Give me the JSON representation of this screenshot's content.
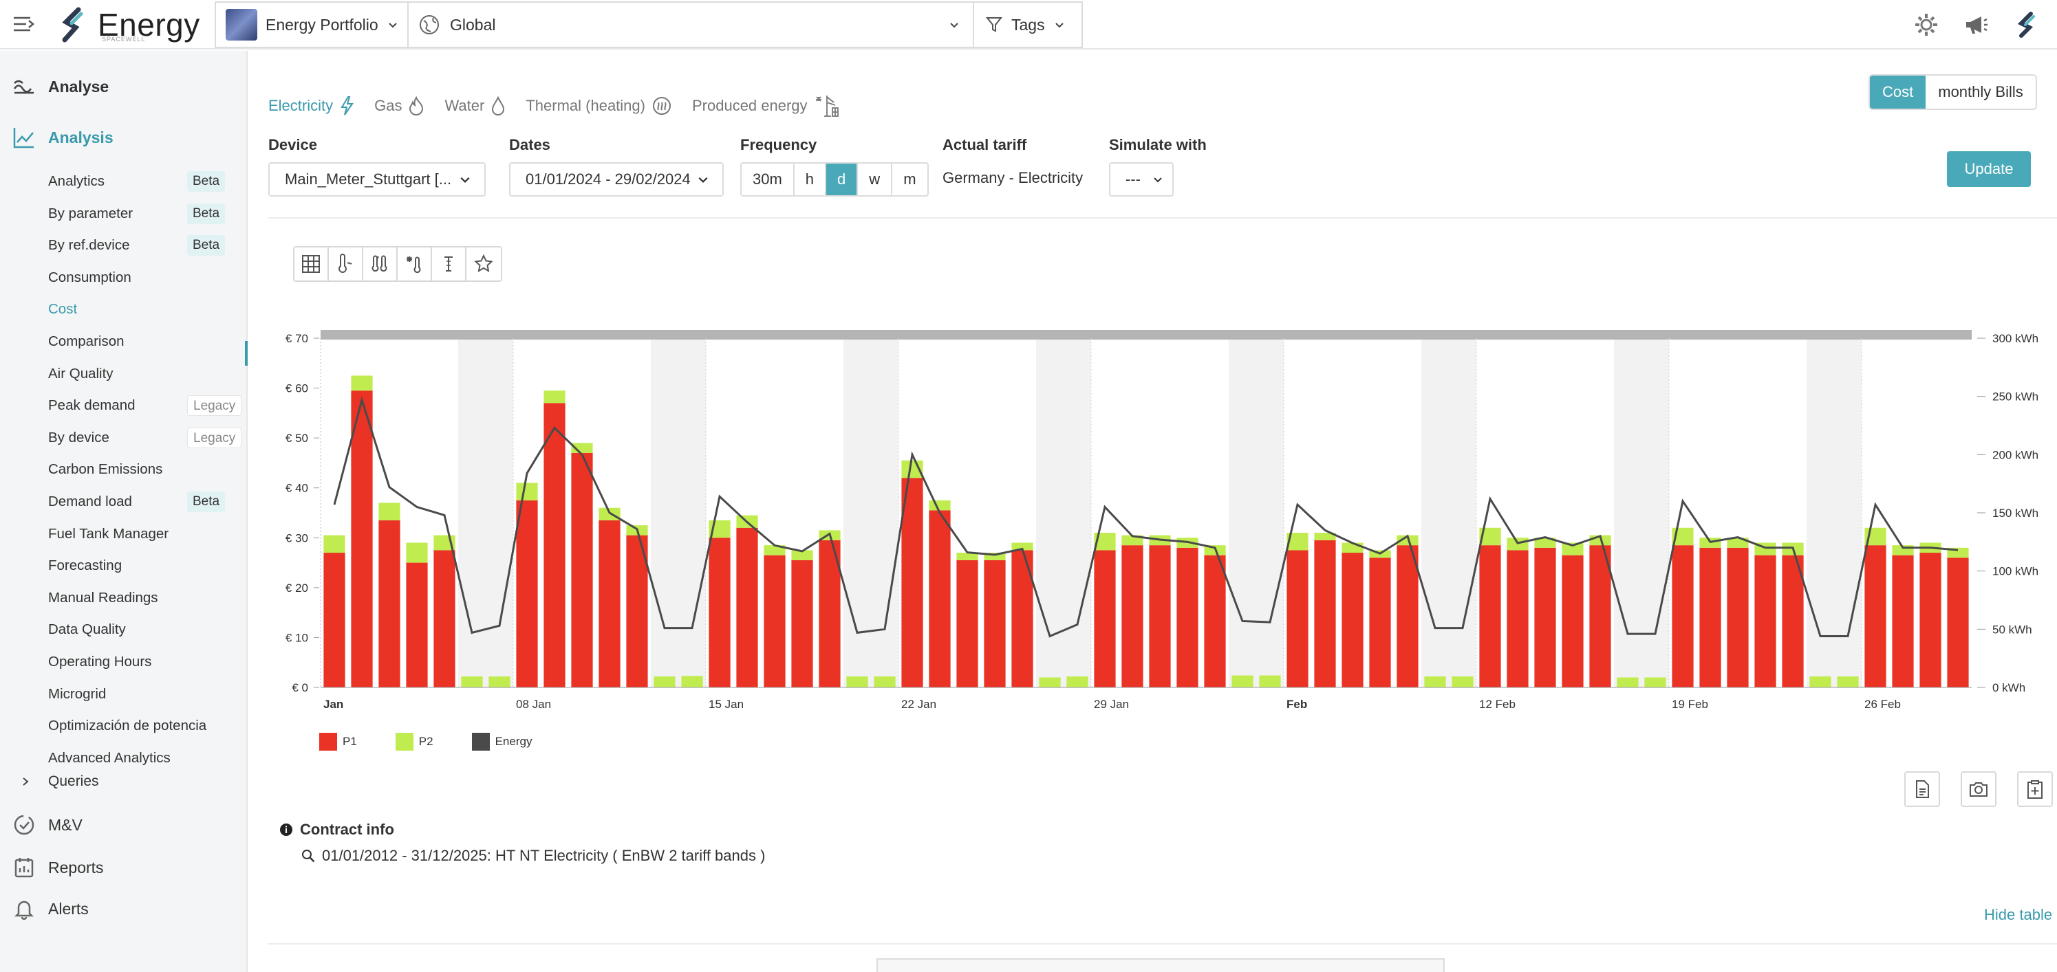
{
  "header": {
    "brand": "Energy",
    "brand_sub": "SPACEWELL",
    "portfolio": "Energy Portfolio",
    "location": "Global",
    "tags": "Tags"
  },
  "sidebar": {
    "analyse": "Analyse",
    "analysis": "Analysis",
    "items": [
      {
        "label": "Analytics",
        "badge": "Beta"
      },
      {
        "label": "By parameter",
        "badge": "Beta"
      },
      {
        "label": "By ref.device",
        "badge": "Beta"
      },
      {
        "label": "Consumption"
      },
      {
        "label": "Cost",
        "active": true
      },
      {
        "label": "Comparison"
      },
      {
        "label": "Air Quality"
      },
      {
        "label": "Peak demand",
        "badge": "Legacy"
      },
      {
        "label": "By device",
        "badge": "Legacy"
      },
      {
        "label": "Carbon Emissions"
      },
      {
        "label": "Demand load",
        "badge": "Beta"
      },
      {
        "label": "Fuel Tank Manager"
      },
      {
        "label": "Forecasting"
      },
      {
        "label": "Manual Readings"
      },
      {
        "label": "Data Quality"
      },
      {
        "label": "Operating Hours"
      },
      {
        "label": "Microgrid"
      },
      {
        "label": "Optimización de potencia"
      },
      {
        "label": "Advanced Analytics"
      }
    ],
    "queries": "Queries",
    "mv": "M&V",
    "reports": "Reports",
    "alerts": "Alerts"
  },
  "energy_tabs": [
    {
      "label": "Electricity",
      "icon": "bolt-icon",
      "active": true
    },
    {
      "label": "Gas",
      "icon": "flame-icon"
    },
    {
      "label": "Water",
      "icon": "drop-icon"
    },
    {
      "label": "Thermal (heating)",
      "icon": "heat-icon"
    },
    {
      "label": "Produced energy",
      "icon": "solar-icon"
    }
  ],
  "view_toggle": {
    "cost": "Cost",
    "bills": "monthly Bills",
    "active": "Cost"
  },
  "controls": {
    "device_label": "Device",
    "device_value": "Main_Meter_Stuttgart [...",
    "dates_label": "Dates",
    "dates_value": "01/01/2024 - 29/02/2024",
    "frequency_label": "Frequency",
    "frequency_options": [
      "30m",
      "h",
      "d",
      "w",
      "m"
    ],
    "frequency_active": "d",
    "tariff_label": "Actual tariff",
    "tariff_value": "Germany - Electricity",
    "simulate_label": "Simulate with",
    "simulate_value": "---",
    "update": "Update"
  },
  "chart_toolbar": [
    "table-icon",
    "temperature-icon",
    "multi-temperature-icon",
    "degree-days-icon",
    "thermometer-icon",
    "star-icon"
  ],
  "chart_data": {
    "type": "bar",
    "subtype": "stacked-bar-with-line",
    "x_tick_labels": [
      "Jan",
      "08 Jan",
      "15 Jan",
      "22 Jan",
      "29 Jan",
      "Feb",
      "12 Feb",
      "19 Feb",
      "26 Feb"
    ],
    "y_left_ticks": [
      "€ 0",
      "€ 10",
      "€ 20",
      "€ 30",
      "€ 40",
      "€ 50",
      "€ 60",
      "€ 70"
    ],
    "y_right_ticks": [
      "0 kWh",
      "50 kWh",
      "100 kWh",
      "150 kWh",
      "200 kWh",
      "250 kWh",
      "300 kWh"
    ],
    "ylim_left": [
      0,
      70
    ],
    "ylim_right": [
      0,
      300
    ],
    "categories": [
      "2024-01-01",
      "2024-01-02",
      "2024-01-03",
      "2024-01-04",
      "2024-01-05",
      "2024-01-06",
      "2024-01-07",
      "2024-01-08",
      "2024-01-09",
      "2024-01-10",
      "2024-01-11",
      "2024-01-12",
      "2024-01-13",
      "2024-01-14",
      "2024-01-15",
      "2024-01-16",
      "2024-01-17",
      "2024-01-18",
      "2024-01-19",
      "2024-01-20",
      "2024-01-21",
      "2024-01-22",
      "2024-01-23",
      "2024-01-24",
      "2024-01-25",
      "2024-01-26",
      "2024-01-27",
      "2024-01-28",
      "2024-01-29",
      "2024-01-30",
      "2024-01-31",
      "2024-02-01",
      "2024-02-02",
      "2024-02-03",
      "2024-02-04",
      "2024-02-05",
      "2024-02-06",
      "2024-02-07",
      "2024-02-08",
      "2024-02-09",
      "2024-02-10",
      "2024-02-11",
      "2024-02-12",
      "2024-02-13",
      "2024-02-14",
      "2024-02-15",
      "2024-02-16",
      "2024-02-17",
      "2024-02-18",
      "2024-02-19",
      "2024-02-20",
      "2024-02-21",
      "2024-02-22",
      "2024-02-23",
      "2024-02-24",
      "2024-02-25",
      "2024-02-26",
      "2024-02-27",
      "2024-02-28",
      "2024-02-29"
    ],
    "series": [
      {
        "name": "P1",
        "color": "#ea3324",
        "axis": "left",
        "values": [
          27,
          59.5,
          33.5,
          25,
          27.5,
          0,
          0,
          37.5,
          57,
          47,
          33.5,
          30.5,
          0,
          0,
          30,
          32,
          26.5,
          25.5,
          29.5,
          0,
          0,
          42,
          35.5,
          25.5,
          25.5,
          27.5,
          0,
          0,
          27.5,
          28.5,
          28.5,
          28,
          26.5,
          0,
          0,
          27.5,
          29.5,
          27,
          26,
          28.5,
          0,
          0,
          28.5,
          27.5,
          28,
          26.5,
          28.5,
          0,
          0,
          28.5,
          28,
          28,
          26.5,
          26.5,
          0,
          0,
          28.5,
          26.5,
          27,
          26
        ]
      },
      {
        "name": "P2",
        "color": "#c1ec4f",
        "axis": "left",
        "values": [
          3.5,
          3,
          3.5,
          4,
          3,
          2.2,
          2.2,
          3.5,
          2.5,
          2,
          2.5,
          2,
          2.2,
          2.3,
          3.5,
          2.5,
          2,
          2,
          2,
          2.2,
          2.2,
          3.5,
          2,
          1.5,
          1.5,
          1.5,
          2,
          2.2,
          3.5,
          2,
          2,
          2,
          2,
          2.4,
          2.4,
          3.5,
          1.5,
          2,
          1.5,
          2,
          2.2,
          2.2,
          3.5,
          2.5,
          2,
          2.5,
          2,
          2,
          2,
          3.5,
          2,
          2,
          2.5,
          2.5,
          2.2,
          2.2,
          3.5,
          2,
          2,
          2
        ]
      },
      {
        "name": "Energy",
        "color": "#4a4a4a",
        "axis": "right",
        "type": "line",
        "values": [
          157,
          247,
          172,
          155,
          148,
          47,
          53,
          184,
          223,
          200,
          150,
          136,
          51,
          51,
          164,
          142,
          122,
          117,
          132,
          47,
          50,
          200,
          150,
          116,
          114,
          119,
          44,
          54,
          155,
          130,
          127,
          125,
          120,
          57,
          56,
          157,
          135,
          124,
          115,
          130,
          51,
          51,
          162,
          124,
          129,
          122,
          130,
          46,
          46,
          160,
          125,
          129,
          120,
          120,
          44,
          44,
          157,
          120,
          120,
          118
        ]
      }
    ],
    "weekend_shading": true,
    "title": "",
    "xlabel": "",
    "ylabel": ""
  },
  "legend": [
    "P1",
    "P2",
    "Energy"
  ],
  "contract": {
    "title": "Contract info",
    "line": "01/01/2012 - 31/12/2025: HT NT Electricity ( EnBW 2 tariff bands )"
  },
  "hide_table": "Hide table",
  "colors": {
    "accent": "#49a9b9",
    "p1": "#ea3324",
    "p2": "#c1ec4f",
    "energy": "#4a4a4a"
  }
}
